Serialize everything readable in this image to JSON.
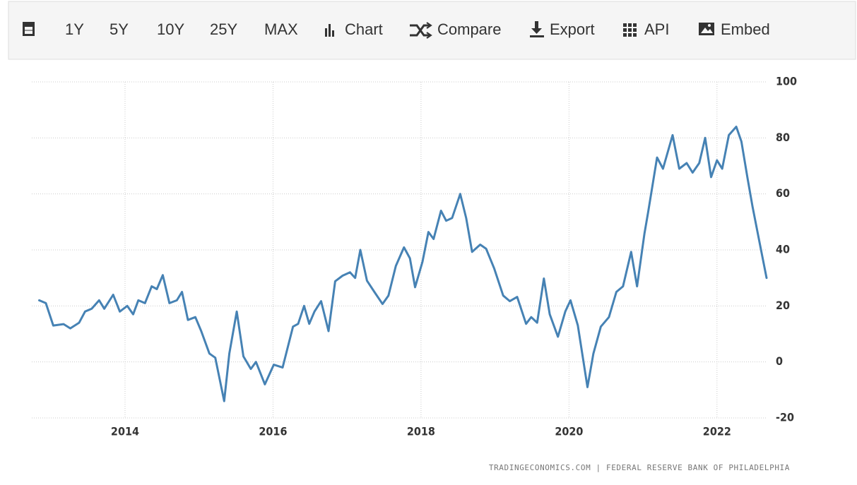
{
  "toolbar": {
    "items": [
      "1Y",
      "5Y",
      "10Y",
      "25Y",
      "MAX",
      "Chart",
      "Compare",
      "Export",
      "API",
      "Embed"
    ]
  },
  "chart_data": {
    "type": "line",
    "x": [
      2012.84,
      2012.93,
      2013.03,
      2013.17,
      2013.26,
      2013.38,
      2013.46,
      2013.55,
      2013.65,
      2013.72,
      2013.84,
      2013.93,
      2014.03,
      2014.11,
      2014.18,
      2014.27,
      2014.36,
      2014.43,
      2014.51,
      2014.6,
      2014.7,
      2014.77,
      2014.85,
      2014.95,
      2015.03,
      2015.14,
      2015.22,
      2015.34,
      2015.41,
      2015.51,
      2015.6,
      2015.7,
      2015.77,
      2015.89,
      2016.01,
      2016.13,
      2016.27,
      2016.34,
      2016.42,
      2016.49,
      2016.56,
      2016.65,
      2016.75,
      2016.84,
      2016.94,
      2017.04,
      2017.11,
      2017.18,
      2017.27,
      2017.37,
      2017.48,
      2017.56,
      2017.66,
      2017.77,
      2017.85,
      2017.92,
      2018.02,
      2018.1,
      2018.17,
      2018.27,
      2018.34,
      2018.42,
      2018.53,
      2018.61,
      2018.69,
      2018.8,
      2018.88,
      2018.99,
      2019.11,
      2019.2,
      2019.3,
      2019.42,
      2019.49,
      2019.57,
      2019.66,
      2019.74,
      2019.85,
      2019.95,
      2020.02,
      2020.12,
      2020.25,
      2020.33,
      2020.43,
      2020.54,
      2020.64,
      2020.73,
      2020.84,
      2020.92,
      2021.02,
      2021.07,
      2021.19,
      2021.27,
      2021.4,
      2021.49,
      2021.59,
      2021.67,
      2021.76,
      2021.84,
      2021.92,
      2022.0,
      2022.07,
      2022.16,
      2022.26,
      2022.33,
      2022.41,
      2022.48,
      2022.57,
      2022.67
    ],
    "series": [
      {
        "color": "#4682b4",
        "values": [
          22,
          21,
          13,
          13.5,
          12,
          14,
          18,
          19,
          22,
          19,
          24,
          18,
          20,
          17,
          22,
          21,
          27,
          26,
          31,
          21,
          22,
          25,
          15,
          16,
          11,
          3,
          1.5,
          -14,
          3,
          18,
          2,
          -2.5,
          0,
          -8,
          -1,
          -2,
          12.6,
          13.6,
          20,
          13.6,
          18,
          21.7,
          11,
          28.8,
          30.8,
          32,
          30,
          40,
          29,
          25,
          20.7,
          23.7,
          34.3,
          40.9,
          37,
          26.7,
          35.8,
          46.4,
          43.9,
          54,
          50.4,
          51.4,
          60,
          51.4,
          39.3,
          41.9,
          40.4,
          33.3,
          23.7,
          21.7,
          23.2,
          13.6,
          16,
          14,
          29.8,
          17,
          9,
          18,
          22,
          13,
          -9,
          3,
          12.6,
          16,
          25,
          27,
          39.3,
          27,
          45.9,
          53.5,
          73,
          69,
          81,
          69,
          71,
          67.6,
          71,
          80,
          66,
          72,
          69,
          81,
          84,
          78.7,
          66,
          55.5,
          43.4,
          30
        ]
      }
    ],
    "xlim": [
      2012.74,
      2022.67
    ],
    "xticks": [
      2014,
      2016,
      2018,
      2020,
      2022
    ],
    "ylim": [
      -20,
      100
    ],
    "yticks": [
      -20,
      0,
      20,
      40,
      60,
      80,
      100
    ],
    "grid": true,
    "source": "TRADINGECONOMICS.COM | FEDERAL RESERVE BANK OF PHILADELPHIA"
  }
}
